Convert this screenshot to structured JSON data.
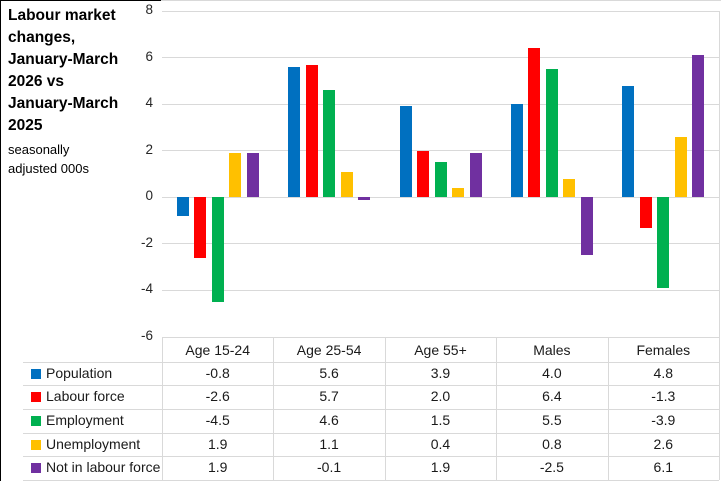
{
  "title": "Labour market changes, January-March 2026 vs January-March 2025",
  "subtitle": "seasonally adjusted 000s",
  "chart_data": {
    "type": "bar",
    "title": "Labour market changes, January-March 2026 vs January-March 2025",
    "subtitle": "seasonally adjusted 000s",
    "categories": [
      "Age 15-24",
      "Age 25-54",
      "Age 55+",
      "Males",
      "Females"
    ],
    "series": [
      {
        "name": "Population",
        "color": "#0070C0",
        "values": [
          -0.8,
          5.6,
          3.9,
          4.0,
          4.8
        ]
      },
      {
        "name": "Labour force",
        "color": "#FF0000",
        "values": [
          -2.6,
          5.7,
          2.0,
          6.4,
          -1.3
        ]
      },
      {
        "name": "Employment",
        "color": "#00B050",
        "values": [
          -4.5,
          4.6,
          1.5,
          5.5,
          -3.9
        ]
      },
      {
        "name": "Unemployment",
        "color": "#FFC000",
        "values": [
          1.9,
          1.1,
          0.4,
          0.8,
          2.6
        ]
      },
      {
        "name": "Not in labour force",
        "color": "#7030A0",
        "values": [
          1.9,
          -0.1,
          1.9,
          -2.5,
          6.1
        ]
      }
    ],
    "xlabel": "",
    "ylabel": "",
    "ylim": [
      -6,
      8
    ],
    "yticks": [
      8,
      6,
      4,
      2,
      0,
      -2,
      -4,
      -6
    ],
    "grid": true,
    "legend_position": "data-table-below-chart"
  },
  "table": {
    "rows": [
      {
        "label": "Population",
        "cells": [
          "-0.8",
          "5.6",
          "3.9",
          "4.0",
          "4.8"
        ]
      },
      {
        "label": "Labour force",
        "cells": [
          "-2.6",
          "5.7",
          "2.0",
          "6.4",
          "-1.3"
        ]
      },
      {
        "label": "Employment",
        "cells": [
          "-4.5",
          "4.6",
          "1.5",
          "5.5",
          "-3.9"
        ]
      },
      {
        "label": "Unemployment",
        "cells": [
          "1.9",
          "1.1",
          "0.4",
          "0.8",
          "2.6"
        ]
      },
      {
        "label": "Not in labour force",
        "cells": [
          "1.9",
          "-0.1",
          "1.9",
          "-2.5",
          "6.1"
        ]
      }
    ]
  },
  "colors": {
    "gridline": "#D9D9D9",
    "frame_border": "#000000",
    "text": "#1A1A1A"
  }
}
